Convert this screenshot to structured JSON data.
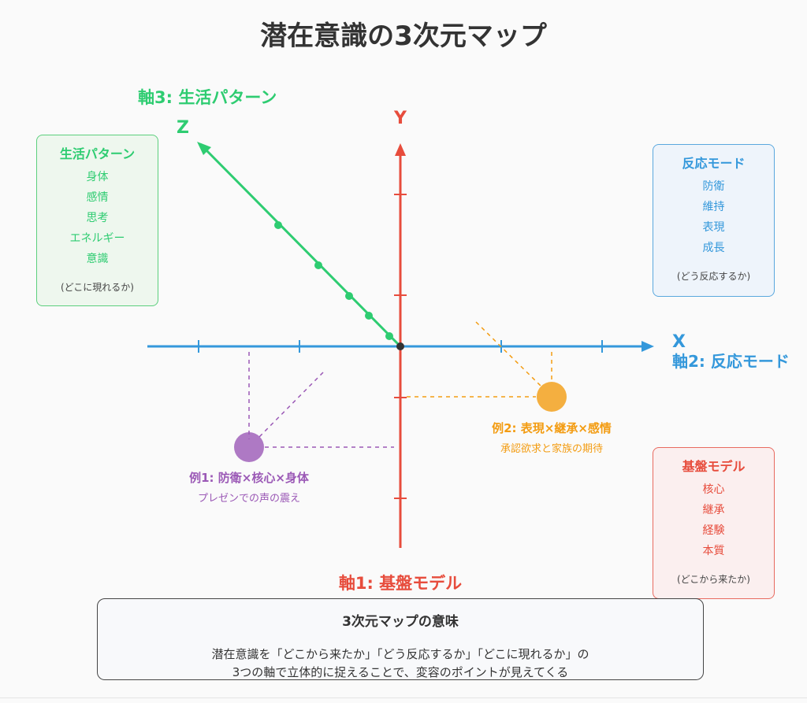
{
  "title": "潜在意識の3次元マップ",
  "axes": {
    "x": {
      "letter": "X",
      "label": "軸2: 反応モード",
      "color": "#3498db"
    },
    "y": {
      "letter": "Y",
      "label": "軸1: 基盤モデル",
      "color": "#e74c3c"
    },
    "z": {
      "letter": "Z",
      "label": "軸3: 生活パターン",
      "color": "#2ecc71"
    }
  },
  "legend_boxes": {
    "life_pattern": {
      "heading": "生活パターン",
      "items": [
        "身体",
        "感情",
        "思考",
        "エネルギー",
        "意識"
      ],
      "note": "(どこに現れるか)"
    },
    "reaction_mode": {
      "heading": "反応モード",
      "items": [
        "防衛",
        "維持",
        "表現",
        "成長"
      ],
      "note": "(どう反応するか)"
    },
    "base_model": {
      "heading": "基盤モデル",
      "items": [
        "核心",
        "継承",
        "経験",
        "本質"
      ],
      "note": "(どこから来たか)"
    }
  },
  "examples": {
    "ex1": {
      "label": "例1: 防衛×核心×身体",
      "sub": "プレゼンでの声の震え",
      "color": "#9b59b6"
    },
    "ex2": {
      "label": "例2: 表現×継承×感情",
      "sub": "承認欲求と家族の期待",
      "color": "#f39c12"
    }
  },
  "meaning": {
    "heading": "3次元マップの意味",
    "line1": "潜在意識を「どこから来たか」「どう反応するか」「どこに現れるか」の",
    "line2": "3つの軸で立体的に捉えることで、変容のポイントが見えてくる"
  }
}
